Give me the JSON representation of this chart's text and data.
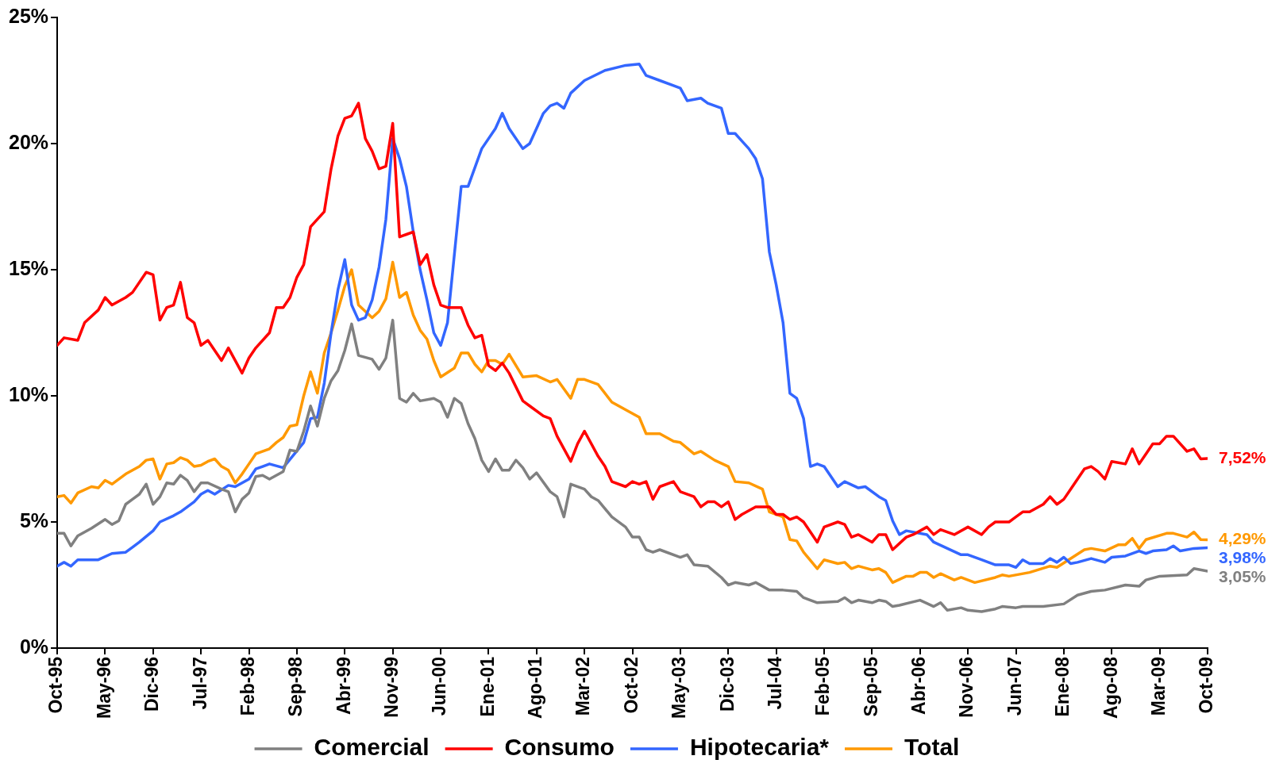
{
  "chart_data": {
    "type": "line",
    "xlim": [
      "1995-10",
      "2009-10"
    ],
    "xticks": [
      {
        "value": "1995-10",
        "label": "Oct-95"
      },
      {
        "value": "1996-05",
        "label": "May-96"
      },
      {
        "value": "1996-12",
        "label": "Dic-96"
      },
      {
        "value": "1997-07",
        "label": "Jul-97"
      },
      {
        "value": "1998-02",
        "label": "Feb-98"
      },
      {
        "value": "1998-09",
        "label": "Sep-98"
      },
      {
        "value": "1999-04",
        "label": "Abr-99"
      },
      {
        "value": "1999-11",
        "label": "Nov-99"
      },
      {
        "value": "2000-06",
        "label": "Jun-00"
      },
      {
        "value": "2001-01",
        "label": "Ene-01"
      },
      {
        "value": "2001-08",
        "label": "Ago-01"
      },
      {
        "value": "2002-03",
        "label": "Mar-02"
      },
      {
        "value": "2002-10",
        "label": "Oct-02"
      },
      {
        "value": "2003-05",
        "label": "May-03"
      },
      {
        "value": "2003-12",
        "label": "Dic-03"
      },
      {
        "value": "2004-07",
        "label": "Jul-04"
      },
      {
        "value": "2005-02",
        "label": "Feb-05"
      },
      {
        "value": "2005-09",
        "label": "Sep-05"
      },
      {
        "value": "2006-04",
        "label": "Abr-06"
      },
      {
        "value": "2006-11",
        "label": "Nov-06"
      },
      {
        "value": "2007-06",
        "label": "Jun-07"
      },
      {
        "value": "2008-01",
        "label": "Ene-08"
      },
      {
        "value": "2008-08",
        "label": "Ago-08"
      },
      {
        "value": "2009-03",
        "label": "Mar-09"
      },
      {
        "value": "2009-10",
        "label": "Oct-09"
      }
    ],
    "ylim": [
      0,
      25
    ],
    "yticks": [
      {
        "value": 0,
        "label": "0%"
      },
      {
        "value": 5,
        "label": "5%"
      },
      {
        "value": 10,
        "label": "10%"
      },
      {
        "value": 15,
        "label": "15%"
      },
      {
        "value": 20,
        "label": "20%"
      },
      {
        "value": 25,
        "label": "25%"
      }
    ],
    "grid": false,
    "legend": "bottom",
    "marker": "none",
    "line_style": "solid",
    "series": [
      {
        "name": "Comercial",
        "color": "#808080",
        "x": [
          "1995-10",
          "1995-11",
          "1995-12",
          "1996-01",
          "1996-03",
          "1996-05",
          "1996-06",
          "1996-07",
          "1996-08",
          "1996-09",
          "1996-10",
          "1996-11",
          "1996-12",
          "1997-01",
          "1997-02",
          "1997-03",
          "1997-04",
          "1997-05",
          "1997-06",
          "1997-07",
          "1997-08",
          "1997-10",
          "1997-11",
          "1997-12",
          "1998-01",
          "1998-02",
          "1998-03",
          "1998-04",
          "1998-05",
          "1998-07",
          "1998-08",
          "1998-09",
          "1998-10",
          "1998-11",
          "1998-12",
          "1999-01",
          "1999-02",
          "1999-03",
          "1999-04",
          "1999-05",
          "1999-06",
          "1999-08",
          "1999-09",
          "1999-10",
          "1999-11",
          "1999-12",
          "2000-01",
          "2000-02",
          "2000-03",
          "2000-05",
          "2000-06",
          "2000-07",
          "2000-08",
          "2000-09",
          "2000-10",
          "2000-11",
          "2000-12",
          "2001-01",
          "2001-02",
          "2001-03",
          "2001-04",
          "2001-05",
          "2001-06",
          "2001-07",
          "2001-08",
          "2001-10",
          "2001-11",
          "2001-12",
          "2002-01",
          "2002-03",
          "2002-04",
          "2002-05",
          "2002-07",
          "2002-09",
          "2002-10",
          "2002-11",
          "2002-12",
          "2003-01",
          "2003-02",
          "2003-05",
          "2003-06",
          "2003-07",
          "2003-09",
          "2003-11",
          "2003-12",
          "2004-01",
          "2004-03",
          "2004-04",
          "2004-06",
          "2004-08",
          "2004-10",
          "2004-11",
          "2005-01",
          "2005-04",
          "2005-05",
          "2005-06",
          "2005-07",
          "2005-09",
          "2005-10",
          "2005-11",
          "2005-12",
          "2006-01",
          "2006-04",
          "2006-06",
          "2006-07",
          "2006-08",
          "2006-10",
          "2006-11",
          "2007-01",
          "2007-03",
          "2007-04",
          "2007-06",
          "2007-07",
          "2007-10",
          "2008-01",
          "2008-03",
          "2008-05",
          "2008-07",
          "2008-10",
          "2008-12",
          "2009-01",
          "2009-03",
          "2009-07",
          "2009-08",
          "2009-10"
        ],
        "values": [
          4.55,
          4.55,
          4.05,
          4.45,
          4.75,
          5.1,
          4.9,
          5.05,
          5.7,
          5.9,
          6.1,
          6.5,
          5.7,
          6.0,
          6.55,
          6.5,
          6.85,
          6.65,
          6.2,
          6.55,
          6.55,
          6.3,
          6.2,
          5.4,
          5.9,
          6.15,
          6.8,
          6.85,
          6.7,
          7.0,
          7.85,
          7.8,
          8.6,
          9.6,
          8.8,
          9.9,
          10.6,
          11.0,
          11.8,
          12.85,
          11.6,
          11.45,
          11.05,
          11.5,
          13.0,
          9.9,
          9.75,
          10.1,
          9.8,
          9.9,
          9.75,
          9.15,
          9.9,
          9.7,
          8.9,
          8.3,
          7.45,
          7.0,
          7.5,
          7.05,
          7.05,
          7.45,
          7.15,
          6.7,
          6.95,
          6.2,
          6.0,
          5.2,
          6.5,
          6.3,
          6.0,
          5.85,
          5.2,
          4.8,
          4.4,
          4.4,
          3.9,
          3.8,
          3.9,
          3.6,
          3.7,
          3.3,
          3.25,
          2.8,
          2.5,
          2.6,
          2.5,
          2.6,
          2.3,
          2.3,
          2.25,
          2.0,
          1.8,
          1.85,
          2.0,
          1.8,
          1.9,
          1.8,
          1.9,
          1.85,
          1.65,
          1.7,
          1.9,
          1.65,
          1.8,
          1.5,
          1.6,
          1.5,
          1.45,
          1.55,
          1.65,
          1.6,
          1.65,
          1.65,
          1.75,
          2.1,
          2.25,
          2.3,
          2.5,
          2.45,
          2.7,
          2.85,
          2.9,
          3.15,
          3.05
        ],
        "value_labels": [
          null,
          null,
          null,
          null,
          null,
          null,
          null,
          null,
          null,
          null,
          null,
          null,
          null,
          null,
          null,
          null,
          null,
          null,
          null,
          null,
          null,
          null,
          null,
          null,
          null,
          null,
          null,
          null,
          null,
          null,
          null,
          null,
          null,
          null,
          null,
          null,
          null,
          null,
          null,
          null,
          null,
          null,
          null,
          null,
          null,
          null,
          null,
          null,
          null,
          null,
          null,
          null,
          null,
          null,
          null,
          null,
          null,
          null,
          null,
          null,
          null,
          null,
          null,
          null,
          null,
          null,
          null,
          null,
          null,
          null,
          null,
          null,
          null,
          null,
          null,
          null,
          null,
          null,
          null,
          null,
          null,
          null,
          null,
          null,
          null,
          null,
          null,
          null,
          null,
          null,
          null,
          null,
          null,
          null,
          null,
          null,
          null,
          null,
          null,
          null,
          null,
          null,
          null,
          null,
          null,
          null,
          null,
          null,
          null,
          null,
          null,
          null,
          null,
          null,
          null,
          null,
          null,
          null,
          null,
          null,
          null,
          null,
          null,
          null,
          "3,05%"
        ]
      },
      {
        "name": "Consumo",
        "color": "#ff0000",
        "x": [
          "1995-10",
          "1995-11",
          "1996-01",
          "1996-02",
          "1996-04",
          "1996-05",
          "1996-06",
          "1996-08",
          "1996-09",
          "1996-11",
          "1996-12",
          "1997-01",
          "1997-02",
          "1997-03",
          "1997-04",
          "1997-05",
          "1997-06",
          "1997-07",
          "1997-08",
          "1997-09",
          "1997-10",
          "1997-11",
          "1998-01",
          "1998-02",
          "1998-03",
          "1998-05",
          "1998-06",
          "1998-07",
          "1998-08",
          "1998-09",
          "1998-10",
          "1998-11",
          "1998-12",
          "1999-01",
          "1999-02",
          "1999-03",
          "1999-04",
          "1999-05",
          "1999-06",
          "1999-07",
          "1999-08",
          "1999-09",
          "1999-10",
          "1999-11",
          "1999-12",
          "2000-01",
          "2000-02",
          "2000-03",
          "2000-04",
          "2000-05",
          "2000-06",
          "2000-07",
          "2000-09",
          "2000-10",
          "2000-11",
          "2000-12",
          "2001-01",
          "2001-02",
          "2001-03",
          "2001-04",
          "2001-06",
          "2001-07",
          "2001-09",
          "2001-10",
          "2001-11",
          "2002-01",
          "2002-02",
          "2002-03",
          "2002-05",
          "2002-06",
          "2002-07",
          "2002-09",
          "2002-10",
          "2002-11",
          "2002-12",
          "2003-01",
          "2003-02",
          "2003-04",
          "2003-05",
          "2003-07",
          "2003-08",
          "2003-09",
          "2003-10",
          "2003-11",
          "2003-12",
          "2004-01",
          "2004-02",
          "2004-04",
          "2004-06",
          "2004-07",
          "2004-08",
          "2004-09",
          "2004-10",
          "2004-11",
          "2005-01",
          "2005-02",
          "2005-04",
          "2005-05",
          "2005-06",
          "2005-07",
          "2005-09",
          "2005-10",
          "2005-11",
          "2005-12",
          "2006-02",
          "2006-03",
          "2006-05",
          "2006-06",
          "2006-07",
          "2006-09",
          "2006-11",
          "2007-01",
          "2007-02",
          "2007-03",
          "2007-05",
          "2007-06",
          "2007-07",
          "2007-08",
          "2007-10",
          "2007-11",
          "2007-12",
          "2008-01",
          "2008-02",
          "2008-03",
          "2008-04",
          "2008-05",
          "2008-06",
          "2008-07",
          "2008-08",
          "2008-10",
          "2008-11",
          "2008-12",
          "2009-01",
          "2009-02",
          "2009-03",
          "2009-04",
          "2009-05",
          "2009-07",
          "2009-08",
          "2009-09",
          "2009-10"
        ],
        "values": [
          12.0,
          12.3,
          12.2,
          12.9,
          13.4,
          13.9,
          13.6,
          13.9,
          14.1,
          14.9,
          14.8,
          13.0,
          13.5,
          13.6,
          14.5,
          13.1,
          12.9,
          12.0,
          12.2,
          11.8,
          11.4,
          11.9,
          10.9,
          11.5,
          11.9,
          12.5,
          13.5,
          13.5,
          13.9,
          14.7,
          15.2,
          16.7,
          17.0,
          17.3,
          19.0,
          20.3,
          21.0,
          21.1,
          21.6,
          20.2,
          19.7,
          19.0,
          19.1,
          20.8,
          16.3,
          16.4,
          16.5,
          15.2,
          15.6,
          14.4,
          13.6,
          13.5,
          13.5,
          12.8,
          12.3,
          12.4,
          11.2,
          11.0,
          11.3,
          10.9,
          9.8,
          9.6,
          9.2,
          9.1,
          8.4,
          7.4,
          8.1,
          8.6,
          7.6,
          7.2,
          6.6,
          6.4,
          6.6,
          6.5,
          6.6,
          5.9,
          6.4,
          6.6,
          6.2,
          6.0,
          5.6,
          5.8,
          5.8,
          5.6,
          5.8,
          5.1,
          5.3,
          5.6,
          5.6,
          5.3,
          5.3,
          5.1,
          5.2,
          5.0,
          4.2,
          4.8,
          5.0,
          4.9,
          4.4,
          4.5,
          4.2,
          4.5,
          4.5,
          3.9,
          4.4,
          4.5,
          4.8,
          4.5,
          4.7,
          4.5,
          4.8,
          4.5,
          4.8,
          5.0,
          5.0,
          5.2,
          5.4,
          5.4,
          5.7,
          6.0,
          5.7,
          5.9,
          6.3,
          6.7,
          7.1,
          7.2,
          7.0,
          6.7,
          7.4,
          7.3,
          7.9,
          7.3,
          7.7,
          8.1,
          8.1,
          8.4,
          8.4,
          7.8,
          7.9,
          7.5,
          7.52
        ],
        "value_labels": [
          null,
          null,
          null,
          null,
          null,
          null,
          null,
          null,
          null,
          null,
          null,
          null,
          null,
          null,
          null,
          null,
          null,
          null,
          null,
          null,
          null,
          null,
          null,
          null,
          null,
          null,
          null,
          null,
          null,
          null,
          null,
          null,
          null,
          null,
          null,
          null,
          null,
          null,
          null,
          null,
          null,
          null,
          null,
          null,
          null,
          null,
          null,
          null,
          null,
          null,
          null,
          null,
          null,
          null,
          null,
          null,
          null,
          null,
          null,
          null,
          null,
          null,
          null,
          null,
          null,
          null,
          null,
          null,
          null,
          null,
          null,
          null,
          null,
          null,
          null,
          null,
          null,
          null,
          null,
          null,
          null,
          null,
          null,
          null,
          null,
          null,
          null,
          null,
          null,
          null,
          null,
          null,
          null,
          null,
          null,
          null,
          null,
          null,
          null,
          null,
          null,
          null,
          null,
          null,
          null,
          null,
          null,
          null,
          null,
          null,
          null,
          null,
          null,
          null,
          null,
          null,
          null,
          null,
          null,
          null,
          null,
          null,
          null,
          null,
          null,
          null,
          null,
          null,
          null,
          null,
          null,
          null,
          null,
          null,
          null,
          null,
          null,
          null,
          null,
          null,
          "7,52%"
        ]
      },
      {
        "name": "Hipotecaria*",
        "color": "#3366ff",
        "x": [
          "1995-10",
          "1995-11",
          "1995-12",
          "1996-01",
          "1996-04",
          "1996-06",
          "1996-08",
          "1996-09",
          "1996-10",
          "1996-12",
          "1997-01",
          "1997-03",
          "1997-04",
          "1997-06",
          "1997-07",
          "1997-08",
          "1997-09",
          "1997-11",
          "1997-12",
          "1998-02",
          "1998-03",
          "1998-04",
          "1998-05",
          "1998-07",
          "1998-10",
          "1998-11",
          "1998-12",
          "1999-01",
          "1999-02",
          "1999-03",
          "1999-04",
          "1999-05",
          "1999-06",
          "1999-07",
          "1999-08",
          "1999-09",
          "1999-10",
          "1999-11",
          "1999-12",
          "2000-01",
          "2000-02",
          "2000-03",
          "2000-04",
          "2000-05",
          "2000-06",
          "2000-07",
          "2000-09",
          "2000-10",
          "2000-12",
          "2001-02",
          "2001-03",
          "2001-04",
          "2001-06",
          "2001-07",
          "2001-08",
          "2001-09",
          "2001-10",
          "2001-11",
          "2001-12",
          "2002-01",
          "2002-03",
          "2002-06",
          "2002-09",
          "2002-11",
          "2002-12",
          "2003-02",
          "2003-04",
          "2003-05",
          "2003-06",
          "2003-08",
          "2003-09",
          "2003-11",
          "2003-12",
          "2004-01",
          "2004-02",
          "2004-03",
          "2004-04",
          "2004-05",
          "2004-06",
          "2004-07",
          "2004-08",
          "2004-09",
          "2004-10",
          "2004-11",
          "2004-12",
          "2005-01",
          "2005-02",
          "2005-04",
          "2005-05",
          "2005-07",
          "2005-08",
          "2005-10",
          "2005-11",
          "2005-12",
          "2006-01",
          "2006-02",
          "2006-05",
          "2006-06",
          "2006-08",
          "2006-10",
          "2006-11",
          "2007-01",
          "2007-03",
          "2007-05",
          "2007-06",
          "2007-07",
          "2007-08",
          "2007-10",
          "2007-11",
          "2007-12",
          "2008-01",
          "2008-02",
          "2008-03",
          "2008-05",
          "2008-07",
          "2008-08",
          "2008-10",
          "2008-12",
          "2009-01",
          "2009-02",
          "2009-04",
          "2009-05",
          "2009-06",
          "2009-08",
          "2009-10"
        ],
        "values": [
          3.25,
          3.4,
          3.25,
          3.5,
          3.5,
          3.75,
          3.8,
          4.0,
          4.2,
          4.65,
          5.0,
          5.25,
          5.4,
          5.8,
          6.1,
          6.25,
          6.1,
          6.45,
          6.4,
          6.7,
          7.1,
          7.2,
          7.3,
          7.15,
          8.15,
          9.1,
          9.15,
          10.5,
          12.5,
          14.2,
          15.4,
          13.6,
          13.0,
          13.1,
          13.8,
          15.1,
          17.0,
          20.2,
          19.4,
          18.3,
          16.5,
          15.0,
          13.8,
          12.5,
          12.0,
          12.9,
          18.3,
          18.3,
          19.8,
          20.6,
          21.2,
          20.6,
          19.8,
          20.0,
          20.6,
          21.2,
          21.5,
          21.6,
          21.4,
          22.0,
          22.5,
          22.9,
          23.1,
          23.15,
          22.7,
          22.5,
          22.3,
          22.2,
          21.7,
          21.8,
          21.6,
          21.4,
          20.4,
          20.4,
          20.1,
          19.8,
          19.4,
          18.6,
          15.7,
          14.4,
          12.9,
          10.1,
          9.9,
          9.1,
          7.2,
          7.3,
          7.2,
          6.4,
          6.6,
          6.35,
          6.4,
          6.0,
          5.85,
          5.05,
          4.5,
          4.65,
          4.5,
          4.2,
          3.95,
          3.7,
          3.7,
          3.5,
          3.3,
          3.3,
          3.2,
          3.5,
          3.35,
          3.35,
          3.55,
          3.4,
          3.6,
          3.35,
          3.4,
          3.55,
          3.4,
          3.6,
          3.65,
          3.85,
          3.75,
          3.85,
          3.9,
          4.05,
          3.85,
          3.95,
          3.98
        ],
        "value_labels": [
          null,
          null,
          null,
          null,
          null,
          null,
          null,
          null,
          null,
          null,
          null,
          null,
          null,
          null,
          null,
          null,
          null,
          null,
          null,
          null,
          null,
          null,
          null,
          null,
          null,
          null,
          null,
          null,
          null,
          null,
          null,
          null,
          null,
          null,
          null,
          null,
          null,
          null,
          null,
          null,
          null,
          null,
          null,
          null,
          null,
          null,
          null,
          null,
          null,
          null,
          null,
          null,
          null,
          null,
          null,
          null,
          null,
          null,
          null,
          null,
          null,
          null,
          null,
          null,
          null,
          null,
          null,
          null,
          null,
          null,
          null,
          null,
          null,
          null,
          null,
          null,
          null,
          null,
          null,
          null,
          null,
          null,
          null,
          null,
          null,
          null,
          null,
          null,
          null,
          null,
          null,
          null,
          null,
          null,
          null,
          null,
          null,
          null,
          null,
          null,
          null,
          null,
          null,
          null,
          null,
          null,
          null,
          null,
          null,
          null,
          null,
          null,
          null,
          null,
          null,
          null,
          null,
          null,
          null,
          null,
          null,
          null,
          null,
          null,
          "3,98%"
        ]
      },
      {
        "name": "Total",
        "color": "#ff9900",
        "x": [
          "1995-10",
          "1995-11",
          "1995-12",
          "1996-01",
          "1996-03",
          "1996-04",
          "1996-05",
          "1996-06",
          "1996-08",
          "1996-09",
          "1996-10",
          "1996-11",
          "1996-12",
          "1997-01",
          "1997-02",
          "1997-03",
          "1997-04",
          "1997-05",
          "1997-06",
          "1997-07",
          "1997-08",
          "1997-09",
          "1997-10",
          "1997-11",
          "1997-12",
          "1998-01",
          "1998-02",
          "1998-03",
          "1998-05",
          "1998-06",
          "1998-07",
          "1998-08",
          "1998-09",
          "1998-10",
          "1998-11",
          "1998-12",
          "1999-01",
          "1999-02",
          "1999-03",
          "1999-04",
          "1999-05",
          "1999-06",
          "1999-07",
          "1999-08",
          "1999-09",
          "1999-10",
          "1999-11",
          "1999-12",
          "2000-01",
          "2000-02",
          "2000-03",
          "2000-04",
          "2000-05",
          "2000-06",
          "2000-08",
          "2000-09",
          "2000-10",
          "2000-11",
          "2000-12",
          "2001-01",
          "2001-02",
          "2001-03",
          "2001-04",
          "2001-05",
          "2001-06",
          "2001-08",
          "2001-10",
          "2001-11",
          "2002-01",
          "2002-02",
          "2002-03",
          "2002-05",
          "2002-07",
          "2002-09",
          "2002-11",
          "2002-12",
          "2003-02",
          "2003-03",
          "2003-04",
          "2003-05",
          "2003-07",
          "2003-08",
          "2003-10",
          "2003-12",
          "2004-01",
          "2004-03",
          "2004-05",
          "2004-06",
          "2004-08",
          "2004-09",
          "2004-10",
          "2004-11",
          "2005-01",
          "2005-02",
          "2005-04",
          "2005-05",
          "2005-06",
          "2005-07",
          "2005-09",
          "2005-10",
          "2005-11",
          "2005-12",
          "2006-02",
          "2006-03",
          "2006-04",
          "2006-05",
          "2006-06",
          "2006-07",
          "2006-09",
          "2006-10",
          "2006-12",
          "2007-03",
          "2007-04",
          "2007-05",
          "2007-08",
          "2007-11",
          "2007-12",
          "2008-04",
          "2008-05",
          "2008-07",
          "2008-09",
          "2008-10",
          "2008-11",
          "2008-12",
          "2009-01",
          "2009-04",
          "2009-05",
          "2009-07",
          "2009-08",
          "2009-09",
          "2009-10"
        ],
        "values": [
          6.0,
          6.05,
          5.75,
          6.15,
          6.4,
          6.35,
          6.65,
          6.5,
          6.9,
          7.05,
          7.2,
          7.45,
          7.5,
          6.7,
          7.3,
          7.35,
          7.55,
          7.45,
          7.2,
          7.25,
          7.4,
          7.5,
          7.2,
          7.05,
          6.55,
          6.9,
          7.3,
          7.7,
          7.9,
          8.15,
          8.35,
          8.8,
          8.85,
          10.0,
          10.95,
          10.1,
          11.7,
          12.5,
          13.4,
          14.35,
          15.0,
          13.6,
          13.35,
          13.1,
          13.35,
          13.85,
          15.3,
          13.9,
          14.1,
          13.2,
          12.6,
          12.25,
          11.4,
          10.75,
          11.1,
          11.7,
          11.7,
          11.25,
          10.95,
          11.4,
          11.4,
          11.25,
          11.65,
          11.2,
          10.75,
          10.8,
          10.55,
          10.65,
          9.9,
          10.65,
          10.65,
          10.45,
          9.75,
          9.45,
          9.15,
          8.5,
          8.5,
          8.35,
          8.2,
          8.15,
          7.7,
          7.8,
          7.45,
          7.2,
          6.6,
          6.55,
          6.3,
          5.4,
          5.2,
          4.3,
          4.25,
          3.8,
          3.15,
          3.5,
          3.35,
          3.4,
          3.15,
          3.25,
          3.1,
          3.15,
          3.0,
          2.6,
          2.85,
          2.85,
          3.0,
          3.0,
          2.8,
          2.95,
          2.7,
          2.8,
          2.6,
          2.8,
          2.9,
          2.85,
          3.0,
          3.25,
          3.2,
          3.9,
          3.95,
          3.85,
          4.1,
          4.1,
          4.35,
          3.95,
          4.3,
          4.55,
          4.55,
          4.4,
          4.6,
          4.3,
          4.29
        ],
        "value_labels": [
          null,
          null,
          null,
          null,
          null,
          null,
          null,
          null,
          null,
          null,
          null,
          null,
          null,
          null,
          null,
          null,
          null,
          null,
          null,
          null,
          null,
          null,
          null,
          null,
          null,
          null,
          null,
          null,
          null,
          null,
          null,
          null,
          null,
          null,
          null,
          null,
          null,
          null,
          null,
          null,
          null,
          null,
          null,
          null,
          null,
          null,
          null,
          null,
          null,
          null,
          null,
          null,
          null,
          null,
          null,
          null,
          null,
          null,
          null,
          null,
          null,
          null,
          null,
          null,
          null,
          null,
          null,
          null,
          null,
          null,
          null,
          null,
          null,
          null,
          null,
          null,
          null,
          null,
          null,
          null,
          null,
          null,
          null,
          null,
          null,
          null,
          null,
          null,
          null,
          null,
          null,
          null,
          null,
          null,
          null,
          null,
          null,
          null,
          null,
          null,
          null,
          null,
          null,
          null,
          null,
          null,
          null,
          null,
          null,
          null,
          null,
          null,
          null,
          null,
          null,
          null,
          null,
          null,
          null,
          null,
          null,
          null,
          null,
          null,
          null,
          null,
          null,
          null,
          null,
          null,
          "4,29%"
        ]
      }
    ]
  }
}
